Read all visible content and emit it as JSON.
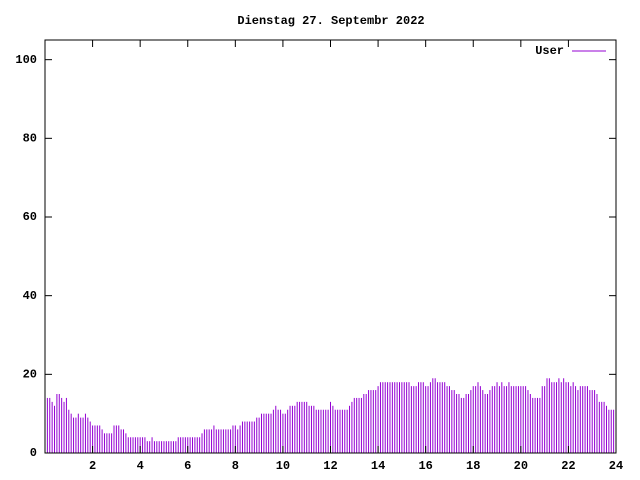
{
  "chart_data": {
    "type": "impulse",
    "title": "Dienstag 27. Septembr 2022",
    "x": [
      0,
      0.1,
      0.2,
      0.3,
      0.4,
      0.5,
      0.6,
      0.7,
      0.8,
      0.9,
      1,
      1.1,
      1.2,
      1.3,
      1.4,
      1.5,
      1.6,
      1.7,
      1.8,
      1.9,
      2,
      2.1,
      2.2,
      2.3,
      2.4,
      2.5,
      2.6,
      2.7,
      2.8,
      2.9,
      3,
      3.1,
      3.2,
      3.3,
      3.4,
      3.5,
      3.6,
      3.7,
      3.8,
      3.9,
      4,
      4.1,
      4.2,
      4.3,
      4.4,
      4.5,
      4.6,
      4.7,
      4.8,
      4.9,
      5,
      5.1,
      5.2,
      5.3,
      5.4,
      5.5,
      5.6,
      5.7,
      5.8,
      5.9,
      6,
      6.1,
      6.2,
      6.3,
      6.4,
      6.5,
      6.6,
      6.7,
      6.8,
      6.9,
      7,
      7.1,
      7.2,
      7.3,
      7.4,
      7.5,
      7.6,
      7.7,
      7.8,
      7.9,
      8,
      8.1,
      8.2,
      8.3,
      8.4,
      8.5,
      8.6,
      8.7,
      8.8,
      8.9,
      9,
      9.1,
      9.2,
      9.3,
      9.4,
      9.5,
      9.6,
      9.7,
      9.8,
      9.9,
      10,
      10.1,
      10.2,
      10.3,
      10.4,
      10.5,
      10.6,
      10.7,
      10.8,
      10.9,
      11,
      11.1,
      11.2,
      11.3,
      11.4,
      11.5,
      11.6,
      11.7,
      11.8,
      11.9,
      12,
      12.1,
      12.2,
      12.3,
      12.4,
      12.5,
      12.6,
      12.7,
      12.8,
      12.9,
      13,
      13.1,
      13.2,
      13.3,
      13.4,
      13.5,
      13.6,
      13.7,
      13.8,
      13.9,
      14,
      14.1,
      14.2,
      14.3,
      14.4,
      14.5,
      14.6,
      14.7,
      14.8,
      14.9,
      15,
      15.1,
      15.2,
      15.3,
      15.4,
      15.5,
      15.6,
      15.7,
      15.8,
      15.9,
      16,
      16.1,
      16.2,
      16.3,
      16.4,
      16.5,
      16.6,
      16.7,
      16.8,
      16.9,
      17,
      17.1,
      17.2,
      17.3,
      17.4,
      17.5,
      17.6,
      17.7,
      17.8,
      17.9,
      18,
      18.1,
      18.2,
      18.3,
      18.4,
      18.5,
      18.6,
      18.7,
      18.8,
      18.9,
      19,
      19.1,
      19.2,
      19.3,
      19.4,
      19.5,
      19.6,
      19.7,
      19.8,
      19.9,
      20,
      20.1,
      20.2,
      20.3,
      20.4,
      20.5,
      20.6,
      20.7,
      20.8,
      20.9,
      21,
      21.1,
      21.2,
      21.3,
      21.4,
      21.5,
      21.6,
      21.7,
      21.8,
      21.9,
      22,
      22.1,
      22.2,
      22.3,
      22.4,
      22.5,
      22.6,
      22.7,
      22.8,
      22.9,
      23,
      23.1,
      23.2,
      23.3,
      23.4,
      23.5,
      23.6,
      23.7,
      23.8,
      23.9
    ],
    "series": [
      {
        "name": "User",
        "color": "#9400d3",
        "values": [
          13,
          14,
          14,
          13,
          12,
          15,
          15,
          14,
          13,
          14,
          11,
          10,
          9,
          9,
          10,
          9,
          9,
          10,
          9,
          8,
          7,
          7,
          7,
          7,
          6,
          5,
          5,
          5,
          5,
          7,
          7,
          7,
          6,
          6,
          5,
          4,
          4,
          4,
          4,
          4,
          4,
          4,
          4,
          3,
          3,
          4,
          3,
          3,
          3,
          3,
          3,
          3,
          3,
          3,
          3,
          3,
          4,
          4,
          4,
          4,
          4,
          4,
          4,
          4,
          4,
          4,
          5,
          6,
          6,
          6,
          6,
          7,
          6,
          6,
          6,
          6,
          6,
          6,
          6,
          7,
          7,
          6,
          7,
          8,
          8,
          8,
          8,
          8,
          8,
          9,
          9,
          10,
          10,
          10,
          10,
          10,
          11,
          12,
          11,
          11,
          10,
          10,
          11,
          12,
          12,
          12,
          13,
          13,
          13,
          13,
          13,
          12,
          12,
          12,
          11,
          11,
          11,
          11,
          11,
          11,
          13,
          12,
          11,
          11,
          11,
          11,
          11,
          11,
          12,
          13,
          14,
          14,
          14,
          14,
          15,
          15,
          16,
          16,
          16,
          16,
          17,
          18,
          18,
          18,
          18,
          18,
          18,
          18,
          18,
          18,
          18,
          18,
          18,
          18,
          17,
          17,
          17,
          18,
          18,
          18,
          17,
          17,
          18,
          19,
          19,
          18,
          18,
          18,
          18,
          17,
          17,
          16,
          16,
          15,
          15,
          14,
          14,
          15,
          15,
          16,
          17,
          17,
          18,
          17,
          16,
          15,
          15,
          16,
          17,
          17,
          18,
          17,
          18,
          17,
          17,
          18,
          17,
          17,
          17,
          17,
          17,
          17,
          17,
          16,
          15,
          14,
          14,
          14,
          14,
          17,
          17,
          19,
          19,
          18,
          18,
          18,
          19,
          18,
          19,
          18,
          18,
          17,
          18,
          17,
          16,
          17,
          17,
          17,
          17,
          16,
          16,
          16,
          15,
          13,
          13,
          13,
          12,
          11,
          11,
          11
        ]
      }
    ],
    "xlim": [
      0,
      24
    ],
    "xticks": [
      2,
      4,
      6,
      8,
      10,
      12,
      14,
      16,
      18,
      20,
      22,
      24
    ],
    "ylim": [
      0,
      105
    ],
    "yticks": [
      0,
      20,
      40,
      60,
      80,
      100
    ],
    "legend": "top-right"
  }
}
